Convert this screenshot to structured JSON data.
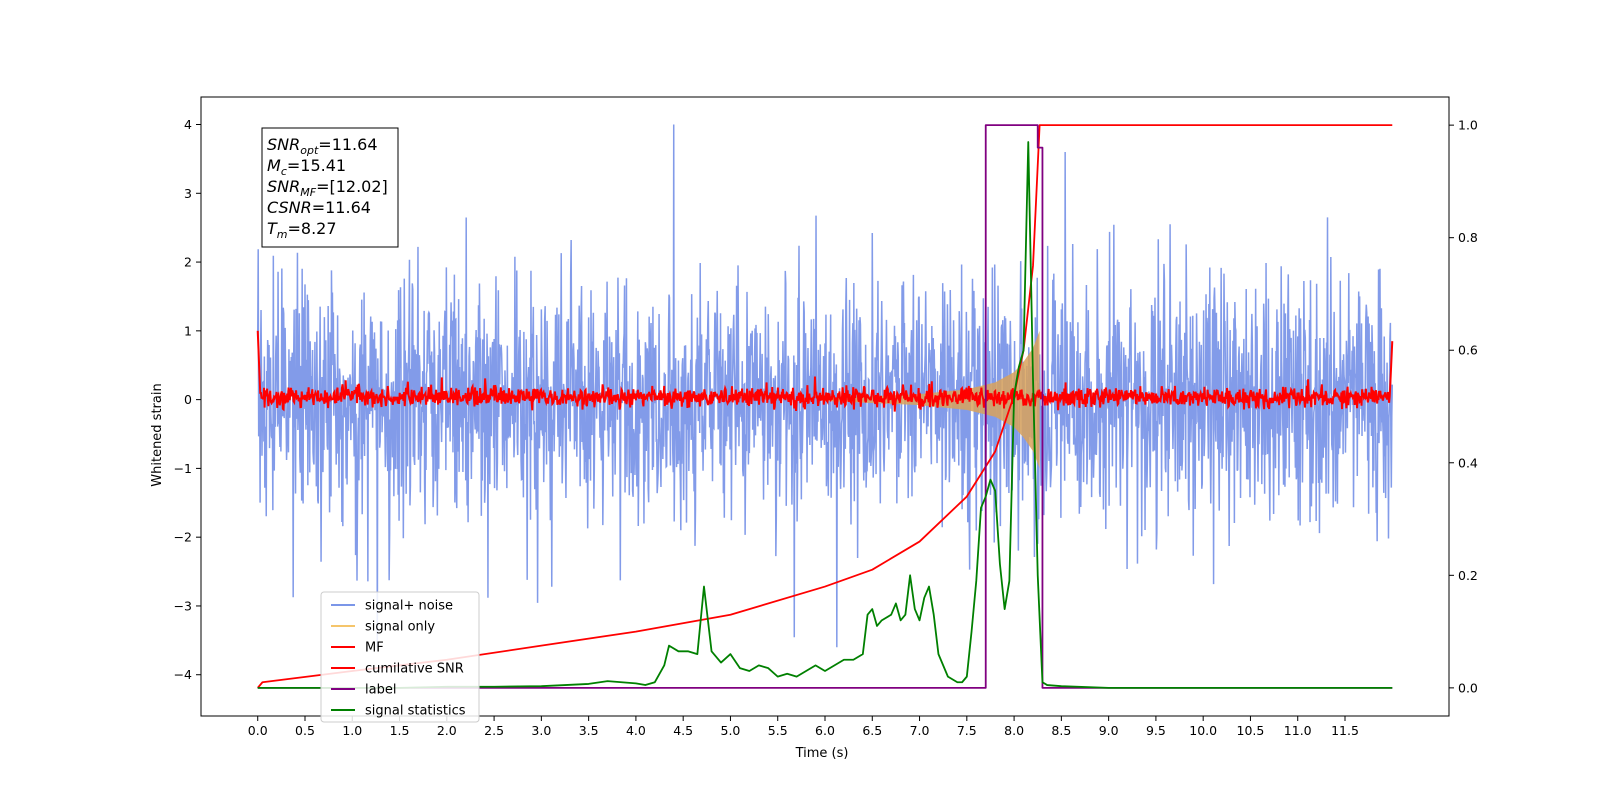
{
  "chart_data": {
    "type": "line",
    "title": "",
    "xlabel": "Time (s)",
    "ylabel": "Whitened strain",
    "xlim": [
      -0.6,
      12.6
    ],
    "ylim": [
      -4.6,
      4.4
    ],
    "y2lim": [
      -0.05,
      1.05
    ],
    "grid": false,
    "legend_position": "lower-left",
    "x_ticks": [
      "0.0",
      "0.5",
      "1.0",
      "1.5",
      "2.0",
      "2.5",
      "3.0",
      "3.5",
      "4.0",
      "4.5",
      "5.0",
      "5.5",
      "6.0",
      "6.5",
      "7.0",
      "7.5",
      "8.0",
      "8.5",
      "9.0",
      "9.5",
      "10.0",
      "10.5",
      "11.0",
      "11.5"
    ],
    "y_ticks": [
      "4",
      "3",
      "2",
      "1",
      "0",
      "−1",
      "−2",
      "−3",
      "−4"
    ],
    "y2_ticks": [
      "1.0",
      "0.8",
      "0.6",
      "0.4",
      "0.2",
      "0.0"
    ],
    "annotation": {
      "lines": [
        {
          "var": "SNR",
          "sub": "opt",
          "value": "=11.64"
        },
        {
          "var": "M",
          "sub": "c",
          "value": "=15.41"
        },
        {
          "var": "SNR",
          "sub": "MF",
          "value": "=[12.02]"
        },
        {
          "var": "CSNR",
          "sub": "",
          "value": "=11.64"
        },
        {
          "var": "T",
          "sub": "m",
          "value": "=8.27"
        }
      ]
    },
    "series": [
      {
        "name": "signal+ noise",
        "color": "#7b96e8",
        "axis": "left",
        "description": "noise band roughly between -2 and 2 with spikes to about ±3.5",
        "x_range": [
          0.0,
          12.0
        ],
        "typical_range": [
          -2.0,
          2.0
        ],
        "peak": 4.0
      },
      {
        "name": "signal only",
        "color": "#f5c56b",
        "axis": "left",
        "chirp_envelope": {
          "x": [
            6.0,
            7.0,
            7.5,
            7.8,
            8.0,
            8.1,
            8.2,
            8.27
          ],
          "amp": [
            0.02,
            0.08,
            0.15,
            0.25,
            0.4,
            0.55,
            0.75,
            1.0
          ]
        }
      },
      {
        "name": "MF",
        "color": "#ff0000",
        "axis": "left",
        "description": "matched filter output near zero, noise about ±0.2, endpoints near 1.0",
        "typical_range": [
          -0.1,
          0.2
        ]
      },
      {
        "name": "cumilative SNR",
        "color": "#ff0000",
        "axis": "right",
        "x": [
          0.0,
          0.05,
          1.0,
          2.0,
          3.0,
          4.0,
          5.0,
          6.0,
          6.5,
          7.0,
          7.5,
          7.8,
          8.0,
          8.1,
          8.2,
          8.27,
          8.28,
          12.0
        ],
        "y": [
          0.0,
          0.01,
          0.03,
          0.05,
          0.075,
          0.1,
          0.13,
          0.18,
          0.21,
          0.26,
          0.34,
          0.42,
          0.52,
          0.6,
          0.75,
          1.0,
          1.0,
          1.0
        ]
      },
      {
        "name": "label",
        "color": "#800080",
        "axis": "right",
        "x": [
          0.0,
          7.7,
          7.7,
          8.25,
          8.25,
          8.3,
          8.3,
          12.0
        ],
        "y": [
          0.0,
          0.0,
          1.0,
          1.0,
          0.96,
          0.96,
          0.0,
          0.0
        ]
      },
      {
        "name": "signal statistics",
        "color": "#008000",
        "axis": "right",
        "x": [
          0.0,
          0.5,
          1.0,
          1.5,
          2.0,
          2.5,
          3.0,
          3.5,
          3.7,
          4.0,
          4.1,
          4.2,
          4.3,
          4.35,
          4.45,
          4.55,
          4.65,
          4.72,
          4.8,
          4.9,
          5.0,
          5.1,
          5.2,
          5.3,
          5.4,
          5.5,
          5.6,
          5.7,
          5.8,
          5.9,
          6.0,
          6.1,
          6.2,
          6.3,
          6.4,
          6.45,
          6.5,
          6.55,
          6.6,
          6.7,
          6.75,
          6.8,
          6.85,
          6.9,
          6.95,
          7.0,
          7.05,
          7.1,
          7.15,
          7.2,
          7.3,
          7.4,
          7.45,
          7.5,
          7.55,
          7.6,
          7.65,
          7.7,
          7.75,
          7.8,
          7.85,
          7.9,
          7.95,
          8.0,
          8.05,
          8.1,
          8.15,
          8.2,
          8.25,
          8.3,
          8.35,
          8.5,
          9.0,
          12.0
        ],
        "y": [
          0.0,
          0.0,
          0.0,
          0.0,
          0.002,
          0.002,
          0.003,
          0.007,
          0.012,
          0.008,
          0.005,
          0.01,
          0.04,
          0.075,
          0.065,
          0.065,
          0.06,
          0.18,
          0.065,
          0.045,
          0.06,
          0.035,
          0.03,
          0.04,
          0.035,
          0.02,
          0.025,
          0.02,
          0.03,
          0.04,
          0.03,
          0.04,
          0.05,
          0.05,
          0.06,
          0.13,
          0.14,
          0.11,
          0.12,
          0.13,
          0.15,
          0.12,
          0.13,
          0.2,
          0.14,
          0.12,
          0.16,
          0.18,
          0.13,
          0.06,
          0.02,
          0.01,
          0.01,
          0.02,
          0.1,
          0.19,
          0.32,
          0.34,
          0.37,
          0.35,
          0.22,
          0.14,
          0.19,
          0.52,
          0.57,
          0.6,
          0.97,
          0.55,
          0.2,
          0.01,
          0.005,
          0.003,
          0.0,
          0.0
        ]
      }
    ]
  }
}
